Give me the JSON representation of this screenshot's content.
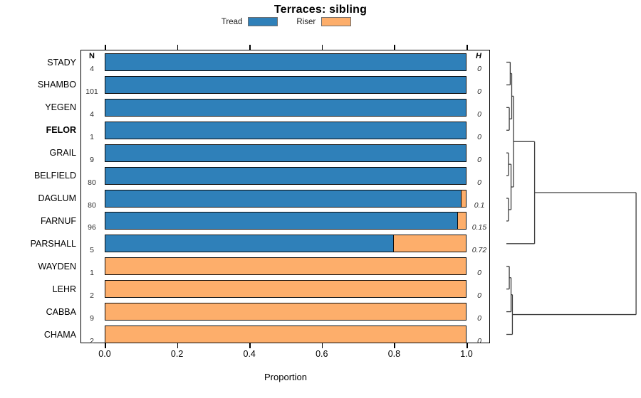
{
  "title": "Terraces: sibling",
  "legend": {
    "items": [
      {
        "label": "Tread",
        "color": "#2f80b9"
      },
      {
        "label": "Riser",
        "color": "#fdae6b"
      }
    ]
  },
  "columns": {
    "n_header": "N",
    "h_header": "H"
  },
  "x_axis": {
    "label": "Proportion",
    "ticks": [
      "0.0",
      "0.2",
      "0.4",
      "0.6",
      "0.8",
      "1.0"
    ],
    "min": 0,
    "max": 1
  },
  "chart_data": {
    "type": "bar",
    "orientation": "horizontal-stacked",
    "title": "Terraces: sibling",
    "xlabel": "Proportion",
    "xlim": [
      0,
      1
    ],
    "categories": [
      "STADY",
      "SHAMBO",
      "YEGEN",
      "FELOR",
      "GRAIL",
      "BELFIELD",
      "DAGLUM",
      "FARNUF",
      "PARSHALL",
      "WAYDEN",
      "LEHR",
      "CABBA",
      "CHAMA"
    ],
    "bold_categories": [
      "FELOR"
    ],
    "series": [
      {
        "name": "Tread",
        "color": "#2f80b9",
        "values": [
          1,
          1,
          1,
          1,
          1,
          1,
          0.9875,
          0.979,
          0.8,
          0,
          0,
          0,
          0
        ]
      },
      {
        "name": "Riser",
        "color": "#fdae6b",
        "values": [
          0,
          0,
          0,
          0,
          0,
          0,
          0.0125,
          0.021,
          0.2,
          1,
          1,
          1,
          1
        ]
      }
    ],
    "n_values": [
      "4",
      "101",
      "4",
      "1",
      "9",
      "80",
      "80",
      "96",
      "5",
      "1",
      "2",
      "9",
      "2"
    ],
    "h_values": [
      "0",
      "0",
      "0",
      "0",
      "0",
      "0",
      "0.1",
      "0.15",
      "0.72",
      "0",
      "0",
      "0",
      "0"
    ],
    "legend_position": "top",
    "grid": false
  },
  "dendrogram": {
    "line_color": "#3d3d3d",
    "merges": [
      {
        "a": "L0",
        "b": "L1",
        "h": 0.06
      },
      {
        "a": "L2",
        "b": "L3",
        "h": 0.053
      },
      {
        "a": "M0",
        "b": "M1",
        "h": 0.071
      },
      {
        "a": "L4",
        "b": "L5",
        "h": 0.047
      },
      {
        "a": "L6",
        "b": "L7",
        "h": 0.047
      },
      {
        "a": "M3",
        "b": "M4",
        "h": 0.066
      },
      {
        "a": "M2",
        "b": "M5",
        "h": 0.084
      },
      {
        "a": "M6",
        "b": "L8",
        "h": 0.24
      },
      {
        "a": "L9",
        "b": "L10",
        "h": 0.053
      },
      {
        "a": "M8",
        "b": "L11",
        "h": 0.066
      },
      {
        "a": "M9",
        "b": "L12",
        "h": 0.076
      },
      {
        "a": "M7",
        "b": "M10",
        "h": 0.99
      }
    ]
  }
}
